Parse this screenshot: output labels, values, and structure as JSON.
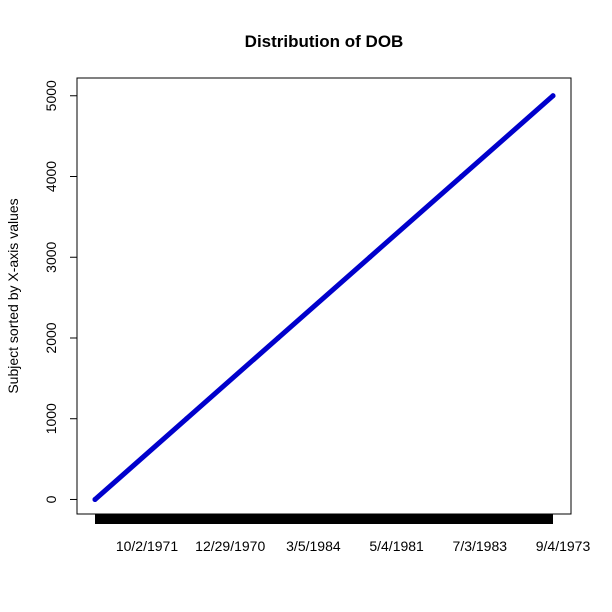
{
  "chart_data": {
    "type": "line",
    "title": "Distribution of DOB",
    "xlabel": "",
    "ylabel": "Subject sorted by X-axis values",
    "ylim": [
      -180,
      5220
    ],
    "yticks": [
      0,
      1000,
      2000,
      3000,
      4000,
      5000
    ],
    "xtick_labels": [
      "10/2/1971",
      "12/29/1970",
      "3/5/1984",
      "5/4/1981",
      "7/3/1983",
      "9/4/1973"
    ],
    "x_index_range": [
      1,
      5000
    ],
    "series": [
      {
        "color": "#0000cc",
        "x": [
          1,
          1000,
          2000,
          3000,
          4000,
          5000
        ],
        "values": [
          0,
          1000,
          2000,
          3000,
          4000,
          5000
        ]
      }
    ],
    "rug_color": "#000000",
    "grid": false,
    "legend": "none"
  }
}
